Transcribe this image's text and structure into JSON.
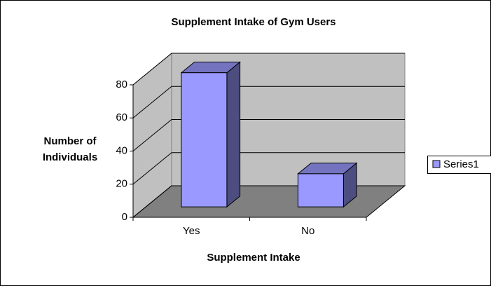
{
  "chart_data": {
    "type": "bar3d",
    "title": "Supplement Intake of Gym Users",
    "x_label": "Supplement Intake",
    "y_label": [
      "Number of",
      "Individuals"
    ],
    "categories": [
      "Yes",
      "No"
    ],
    "series": [
      {
        "name": "Series1",
        "color": "#9999ff",
        "values": [
          81,
          20
        ]
      }
    ],
    "ylim": [
      0,
      80
    ],
    "yticks": [
      0,
      20,
      40,
      60,
      80
    ],
    "grid": true,
    "legend": "right"
  }
}
